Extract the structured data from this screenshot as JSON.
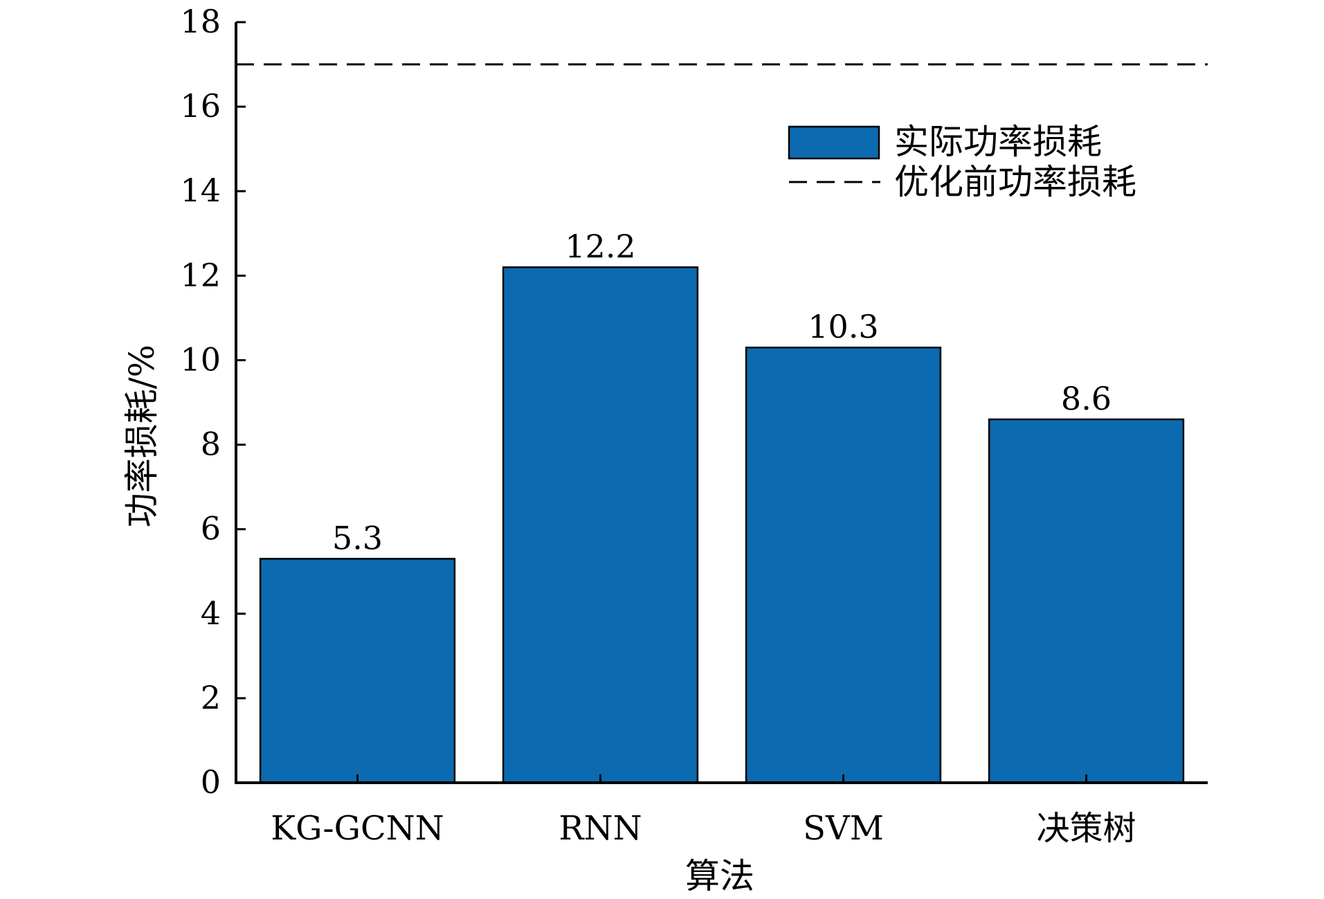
{
  "chart_data": {
    "type": "bar",
    "title": "",
    "xlabel": "算法",
    "ylabel": "功率损耗/%",
    "categories": [
      "KG-GCNN",
      "RNN",
      "SVM",
      "决策树"
    ],
    "series": [
      {
        "name": "实际功率损耗",
        "values": [
          5.3,
          12.2,
          10.3,
          8.6
        ],
        "color": "#0b6ab0"
      }
    ],
    "data_labels": [
      "5.3",
      "12.2",
      "10.3",
      "8.6"
    ],
    "reference_line": {
      "name": "优化前功率损耗",
      "value": 17,
      "style": "dashed",
      "color": "#000000"
    },
    "ylim": [
      0,
      18
    ],
    "yticks": [
      0,
      2,
      4,
      6,
      8,
      10,
      12,
      14,
      16,
      18
    ],
    "grid": false,
    "legend_position": "top-right"
  }
}
